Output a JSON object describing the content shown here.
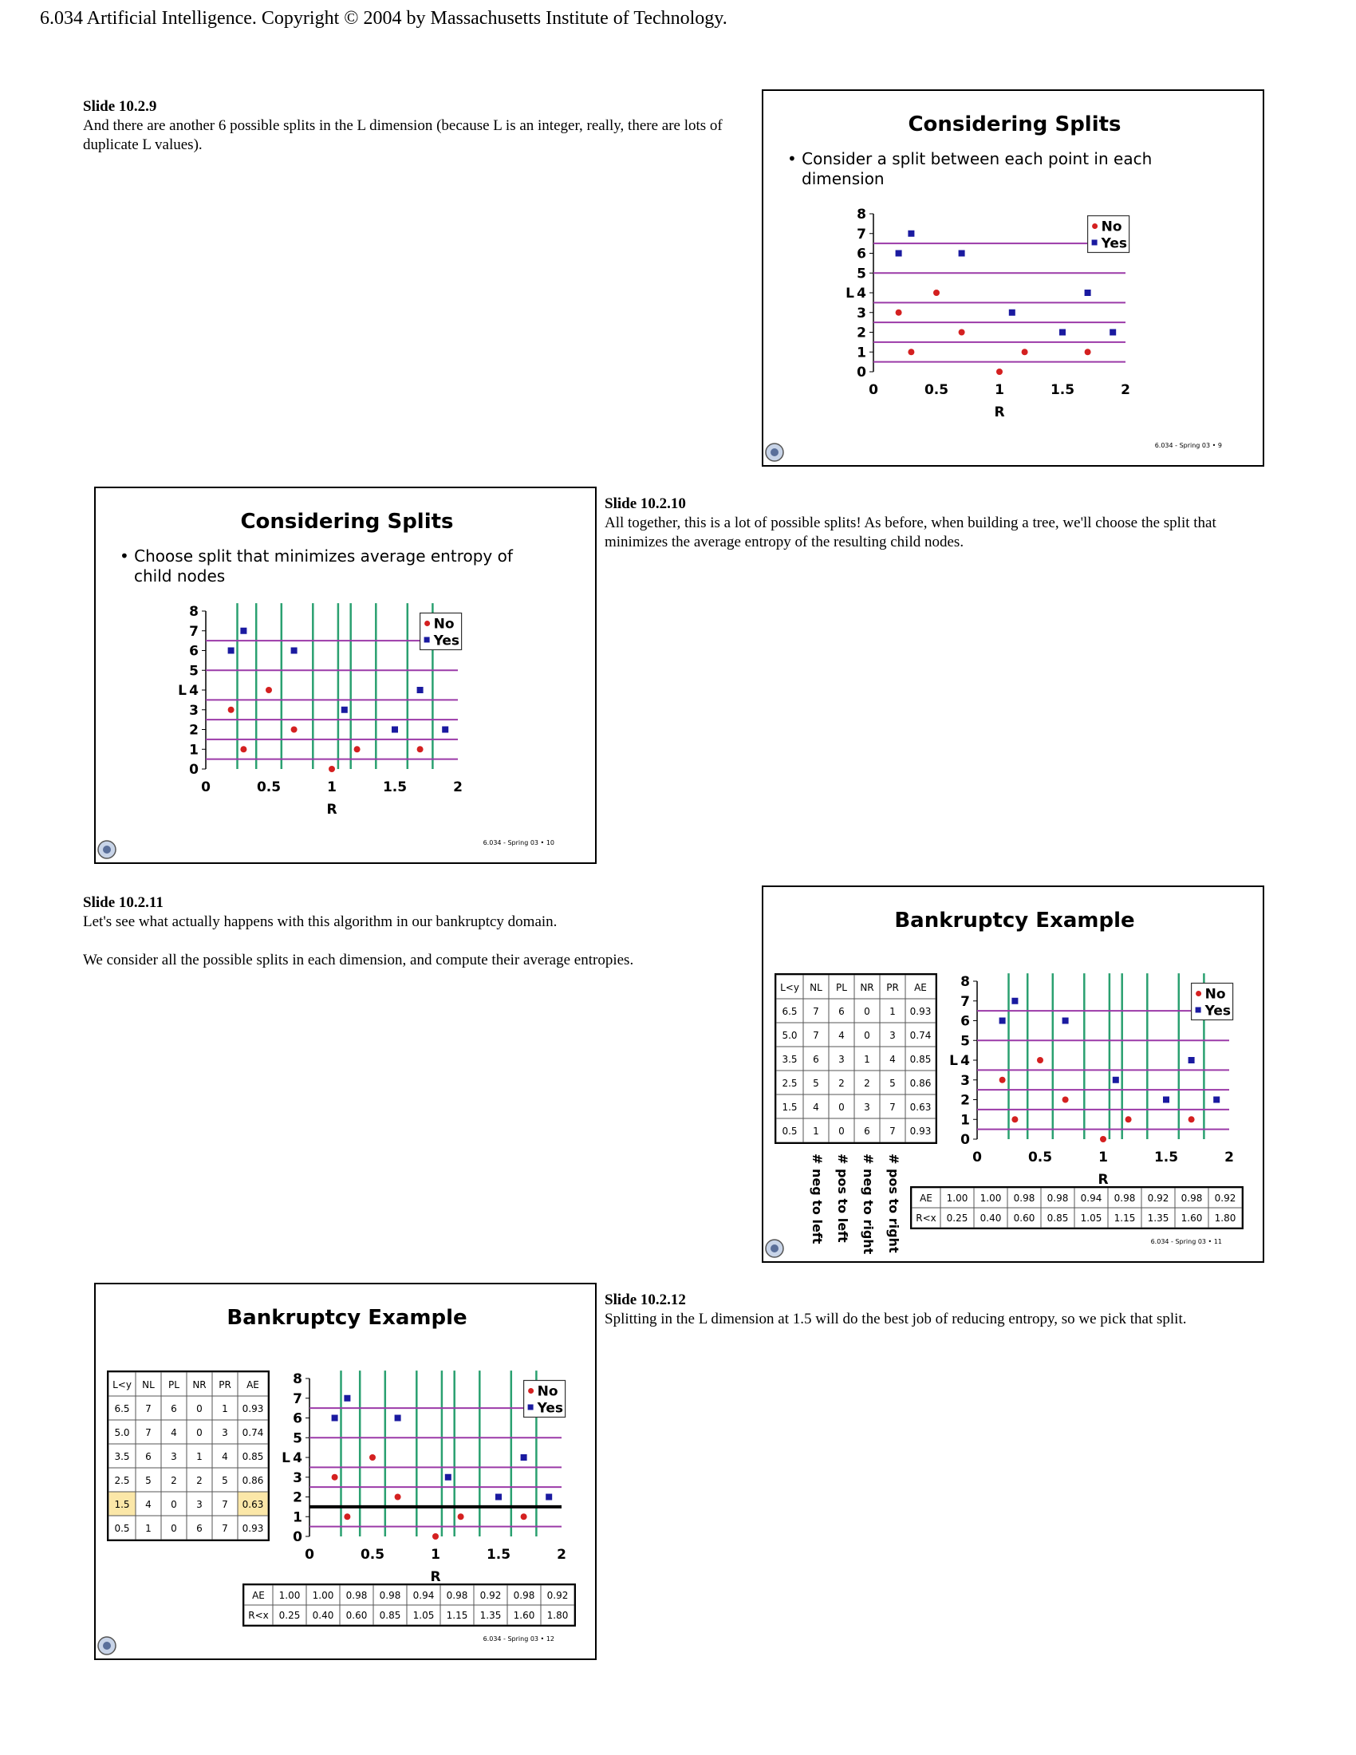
{
  "header": "6.034 Artificial Intelligence. Copyright © 2004 by Massachusetts Institute of Technology.",
  "captions": [
    {
      "title": "Slide 10.2.9",
      "text": "And there are another 6 possible splits in the L dimension (because L is an integer, really, there are lots of duplicate L values)."
    },
    {
      "title": "Slide 10.2.10",
      "text": "All together, this is a lot of possible splits! As before, when building a tree, we'll choose the split that minimizes the average entropy of the resulting child nodes."
    },
    {
      "title": "Slide 10.2.11",
      "text": "Let's see what actually happens with this algorithm in our bankruptcy domain.",
      "text2": "We consider all the possible splits in each dimension, and compute their average entropies."
    },
    {
      "title": "Slide 10.2.12",
      "text": "Splitting in the L dimension at 1.5 will do the best job of reducing entropy, so we pick that split."
    }
  ],
  "slides": [
    {
      "title": "Considering Splits",
      "bullet": "Consider a split between each point in each dimension",
      "footer": "6.034 - Spring 03 • 9"
    },
    {
      "title": "Considering Splits",
      "bullet": "Choose split that minimizes average entropy of child nodes",
      "footer": "6.034 - Spring 03 • 10"
    },
    {
      "title": "Bankruptcy Example",
      "footer": "6.034 - Spring 03 • 11"
    },
    {
      "title": "Bankruptcy Example",
      "footer": "6.034 - Spring 03 • 12"
    }
  ],
  "plot": {
    "xlabel": "R",
    "ylabel": "L",
    "xticks": [
      "0",
      "0.5",
      "1",
      "1.5",
      "2"
    ],
    "yticks": [
      "0",
      "1",
      "2",
      "3",
      "4",
      "5",
      "6",
      "7",
      "8"
    ],
    "legend": [
      "No",
      "Yes"
    ],
    "colors": {
      "no": "#d42020",
      "yes": "#1a1aa0",
      "hsplit": "#9b3aa8",
      "vsplit": "#2aa070",
      "best": "#000000"
    },
    "no_points": [
      [
        0.2,
        3
      ],
      [
        0.3,
        1
      ],
      [
        0.5,
        4
      ],
      [
        0.7,
        2
      ],
      [
        1.0,
        0
      ],
      [
        1.2,
        1
      ],
      [
        1.7,
        1
      ]
    ],
    "yes_points": [
      [
        0.2,
        6
      ],
      [
        0.3,
        7
      ],
      [
        0.7,
        6
      ],
      [
        1.1,
        3
      ],
      [
        1.5,
        2
      ],
      [
        1.7,
        4
      ],
      [
        1.9,
        2
      ]
    ],
    "l_splits": [
      0.5,
      1.5,
      2.5,
      3.5,
      5.0,
      6.5
    ],
    "r_splits": [
      0.25,
      0.4,
      0.6,
      0.85,
      1.05,
      1.15,
      1.35,
      1.6,
      1.8
    ],
    "best_l_split": 1.5
  },
  "l_table": {
    "headers": [
      "L<y",
      "NL",
      "PL",
      "NR",
      "PR",
      "AE"
    ],
    "rows": [
      [
        "6.5",
        "7",
        "6",
        "0",
        "1",
        "0.93"
      ],
      [
        "5.0",
        "7",
        "4",
        "0",
        "3",
        "0.74"
      ],
      [
        "3.5",
        "6",
        "3",
        "1",
        "4",
        "0.85"
      ],
      [
        "2.5",
        "5",
        "2",
        "2",
        "5",
        "0.86"
      ],
      [
        "1.5",
        "4",
        "0",
        "3",
        "7",
        "0.63"
      ],
      [
        "0.5",
        "1",
        "0",
        "6",
        "7",
        "0.93"
      ]
    ],
    "highlight_row": 4,
    "rotated_labels": [
      "# neg to left",
      "# pos to left",
      "# neg to right",
      "# pos to right"
    ]
  },
  "r_table": {
    "ae": [
      "AE",
      "1.00",
      "1.00",
      "0.98",
      "0.98",
      "0.94",
      "0.98",
      "0.92",
      "0.98",
      "0.92"
    ],
    "r": [
      "R<x",
      "0.25",
      "0.40",
      "0.60",
      "0.85",
      "1.05",
      "1.15",
      "1.35",
      "1.60",
      "1.80"
    ]
  }
}
